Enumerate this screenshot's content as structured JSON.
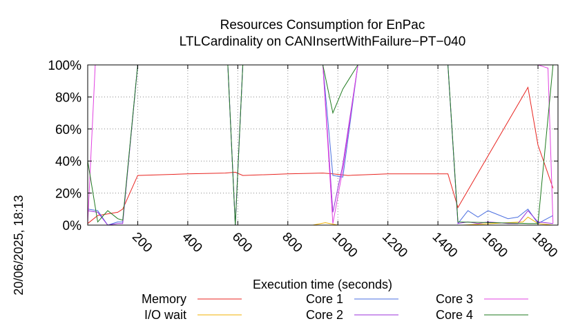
{
  "chart_data": {
    "type": "line",
    "title": "Resources Consumption for EnPac",
    "subtitle": "LTLCardinality on CANInsertWithFailure−PT−040",
    "xlabel": "Execution time (seconds)",
    "ylabel": "",
    "timestamp": "20/06/2025, 18:13",
    "xlim": [
      0,
      1880
    ],
    "ylim": [
      0,
      100
    ],
    "xticks": [
      200,
      400,
      600,
      800,
      1000,
      1200,
      1400,
      1600,
      1800
    ],
    "xtick_labels": [
      "200",
      "400",
      "600",
      "800",
      "1000",
      "1200",
      "1400",
      "1600",
      "1800"
    ],
    "yticks": [
      0,
      20,
      40,
      60,
      80,
      100
    ],
    "ytick_labels": [
      "0%",
      "20%",
      "40%",
      "60%",
      "80%",
      "100%"
    ],
    "grid": true,
    "legend_position": "bottom",
    "series": [
      {
        "name": "Memory",
        "color": "#e8231f",
        "x": [
          0,
          40,
          80,
          120,
          140,
          200,
          400,
          550,
          590,
          620,
          800,
          940,
          980,
          1040,
          1200,
          1300,
          1440,
          1480,
          1760,
          1800,
          1860
        ],
        "y": [
          1,
          6,
          7,
          8,
          10,
          31,
          32,
          32.5,
          33,
          31,
          32,
          32.5,
          32,
          31,
          32,
          32,
          32,
          11,
          86,
          50,
          23
        ]
      },
      {
        "name": "I/O wait",
        "color": "#f0b000",
        "x": [
          0,
          100,
          500,
          900,
          950,
          1000,
          1100,
          1500,
          1740,
          1760,
          1800,
          1860
        ],
        "y": [
          0,
          0,
          0,
          0,
          1.5,
          0,
          0,
          0,
          2,
          5,
          1,
          0
        ]
      },
      {
        "name": "Core 1",
        "color": "#4a6ee0",
        "x": [
          0,
          40,
          80,
          120,
          140,
          200,
          560,
          590,
          620,
          940,
          980,
          1020,
          1080,
          1440,
          1480,
          1520,
          1560,
          1600,
          1680,
          1720,
          1760,
          1800,
          1860
        ],
        "y": [
          10,
          9,
          0,
          2,
          2,
          100,
          100,
          0,
          100,
          100,
          31,
          30,
          100,
          100,
          1,
          9,
          5,
          9,
          4,
          5,
          10,
          1,
          6
        ]
      },
      {
        "name": "Core 2",
        "color": "#9b30d9",
        "x": [
          0,
          40,
          80,
          120,
          140,
          200,
          560,
          590,
          620,
          940,
          980,
          1020,
          1080,
          1440,
          1480,
          1520,
          1560,
          1600,
          1680,
          1720,
          1760,
          1800,
          1860
        ],
        "y": [
          9,
          8,
          0,
          1,
          1,
          100,
          100,
          0,
          100,
          100,
          8,
          38,
          100,
          100,
          1,
          2,
          1,
          2,
          1,
          1,
          9,
          2,
          1
        ]
      },
      {
        "name": "Core 3",
        "color": "#e040e0",
        "x": [
          0,
          30,
          60,
          200,
          560,
          940,
          980,
          1020,
          1080,
          1440,
          1800,
          1820,
          1840,
          1860
        ],
        "y": [
          1,
          100,
          100,
          100,
          100,
          100,
          1,
          35,
          100,
          100,
          100,
          99,
          98,
          1
        ]
      },
      {
        "name": "Core 4",
        "color": "#1e7a1e",
        "x": [
          0,
          40,
          80,
          120,
          140,
          200,
          560,
          590,
          620,
          940,
          980,
          1020,
          1080,
          1440,
          1480,
          1760,
          1800,
          1860
        ],
        "y": [
          40,
          2,
          9,
          4,
          3,
          100,
          100,
          0,
          100,
          100,
          70,
          85,
          100,
          100,
          2,
          1,
          1,
          100
        ]
      }
    ]
  }
}
